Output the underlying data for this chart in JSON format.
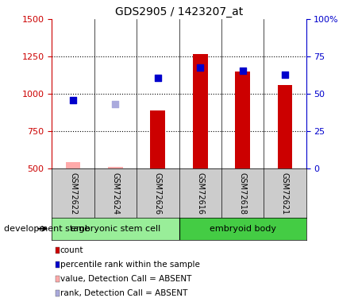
{
  "title": "GDS2905 / 1423207_at",
  "samples": [
    "GSM72622",
    "GSM72624",
    "GSM72626",
    "GSM72616",
    "GSM72618",
    "GSM72621"
  ],
  "bar_values": [
    540,
    510,
    890,
    1265,
    1150,
    1060
  ],
  "bar_absent": [
    true,
    true,
    false,
    false,
    false,
    false
  ],
  "dot_values": [
    960,
    930,
    1110,
    1175,
    1155,
    1130
  ],
  "dot_absent": [
    false,
    true,
    false,
    false,
    false,
    false
  ],
  "ylim_left": [
    500,
    1500
  ],
  "ylim_right": [
    0,
    100
  ],
  "yticks_left": [
    500,
    750,
    1000,
    1250,
    1500
  ],
  "yticks_right": [
    0,
    25,
    50,
    75,
    100
  ],
  "right_tick_labels": [
    "0",
    "25",
    "50",
    "75",
    "100%"
  ],
  "bar_color_normal": "#cc0000",
  "bar_color_absent": "#ffaaaa",
  "dot_color_normal": "#0000cc",
  "dot_color_absent": "#aaaadd",
  "bar_width": 0.35,
  "dot_size": 35,
  "group_bg_color": "#cccccc",
  "group1_color": "#99ee99",
  "group2_color": "#44cc44",
  "group1_label": "embryonic stem cell",
  "group2_label": "embryoid body",
  "development_stage_label": "development stage",
  "legend_items": [
    {
      "label": "count",
      "color": "#cc0000"
    },
    {
      "label": "percentile rank within the sample",
      "color": "#0000cc"
    },
    {
      "label": "value, Detection Call = ABSENT",
      "color": "#ffaaaa"
    },
    {
      "label": "rank, Detection Call = ABSENT",
      "color": "#aaaadd"
    }
  ],
  "grid_lines": [
    750,
    1000,
    1250
  ],
  "left_axis_color": "#cc0000",
  "right_axis_color": "#0000cc"
}
